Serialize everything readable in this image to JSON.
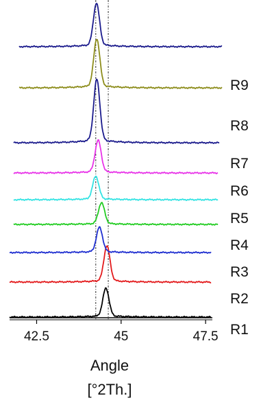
{
  "chart_data": {
    "type": "line",
    "xlabel": "Angle",
    "xlabel_unit": "[°2Th.]",
    "xlim": [
      41.7,
      47.7
    ],
    "x_ticks": [
      "42.5",
      "45",
      "47.5"
    ],
    "x_tick_values": [
      42.5,
      45,
      47.5
    ],
    "reference_lines": [
      44.25,
      44.62
    ],
    "grid": false,
    "legend": "series labels at right end of each trace",
    "series": [
      {
        "name": "R1",
        "color": "#000000",
        "peak_x": 44.55,
        "peak_height": 0.8
      },
      {
        "name": "R2",
        "color": "#e31a1c",
        "peak_x": 44.58,
        "peak_height": 1.0
      },
      {
        "name": "R3",
        "color": "#1f2fd0",
        "peak_x": 44.36,
        "peak_height": 0.7
      },
      {
        "name": "R4",
        "color": "#22cc22",
        "peak_x": 44.42,
        "peak_height": 0.6
      },
      {
        "name": "R5",
        "color": "#33e3e3",
        "peak_x": 44.25,
        "peak_height": 0.65
      },
      {
        "name": "R6",
        "color": "#e833e8",
        "peak_x": 44.32,
        "peak_height": 0.9
      },
      {
        "name": "R7",
        "color": "#1a1a8c",
        "peak_x": 44.28,
        "peak_height": 1.75
      },
      {
        "name": "R8",
        "color": "#8c8c1a",
        "peak_x": 44.28,
        "peak_height": 1.35
      },
      {
        "name": "R9",
        "color": "#1a1a8c",
        "peak_x": 44.27,
        "peak_height": 1.2
      }
    ]
  }
}
